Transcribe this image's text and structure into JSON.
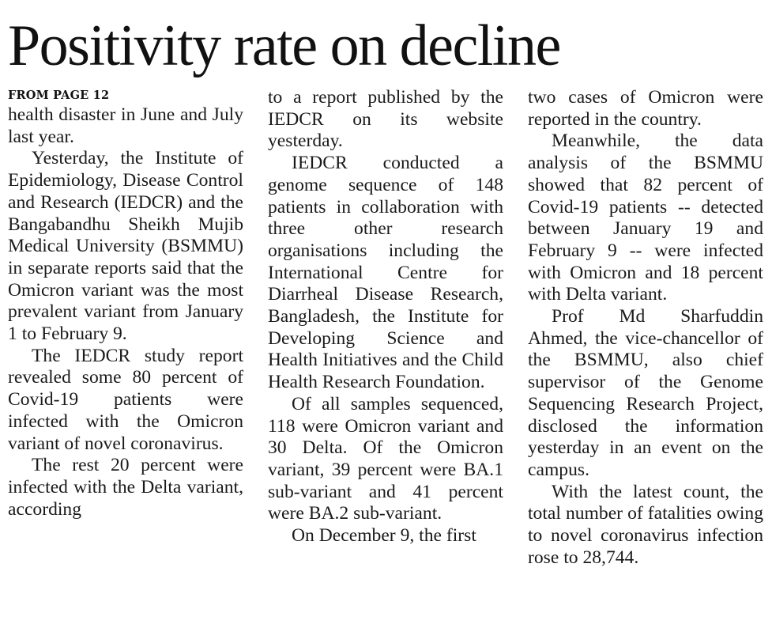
{
  "headline": "Positivity rate on decline",
  "kicker": "FROM PAGE 12",
  "columns": [
    {
      "paragraphs": [
        "health disaster in June and July last year.",
        "Yesterday, the Institute of Epidemiology, Disease Control and Research (IEDCR) and the Bangabandhu Sheikh Mujib Medical University (BSMMU) in separate reports said that the Omicron variant was the most prevalent variant from January 1 to February 9.",
        "The IEDCR study report revealed some 80 percent of Covid-19 patients were infected with the Omicron variant of novel coronavirus.",
        "The rest 20 percent were infected with the Delta variant, according"
      ]
    },
    {
      "paragraphs": [
        "to a report published by the IEDCR on its website yesterday.",
        "IEDCR conducted a genome sequence of 148 patients in collaboration with three other research organisations including the International Centre for Diarrheal Disease Research, Bangladesh, the Institute for Developing Science and Health Initiatives and the Child Health Research Foundation.",
        "Of all samples sequenced, 118 were Omicron variant and 30 Delta. Of the Omicron variant, 39 percent were BA.1 sub-variant and 41 percent were BA.2 sub-variant.",
        "On December 9, the first"
      ]
    },
    {
      "paragraphs": [
        "two cases of Omicron were reported in the country.",
        "Meanwhile, the data analysis of the BSMMU showed that 82 percent of Covid-19 patients -- detected between January 19 and February 9 -- were infected with Omicron and 18 percent with Delta variant.",
        "Prof Md Sharfuddin Ahmed, the vice-chancellor of the BSMMU, also chief supervisor of the Genome Sequencing Research Project, disclosed the information yesterday in an event on the campus.",
        "With the latest count, the total number of fatalities owing to novel coronavirus infection rose to 28,744."
      ]
    }
  ]
}
